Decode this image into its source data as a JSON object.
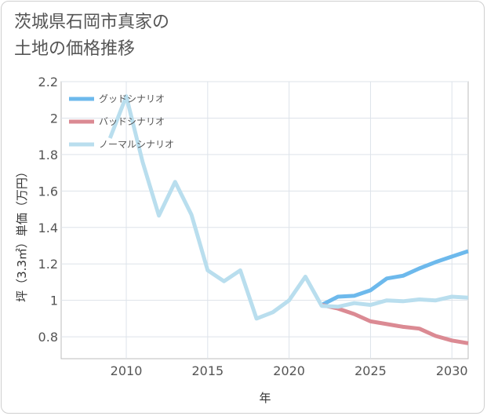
{
  "chart_data": {
    "type": "line",
    "title_lines": [
      "茨城県石岡市真家の",
      "土地の価格推移"
    ],
    "xlabel": "年",
    "ylabel": "坪（3.3㎡）単価（万円）",
    "xlim": [
      2006,
      2031
    ],
    "ylim": [
      0.68,
      2.2
    ],
    "x_ticks": [
      2010,
      2015,
      2020,
      2025,
      2030
    ],
    "y_ticks": [
      0.8,
      1,
      1.2,
      1.4,
      1.6,
      1.8,
      2,
      2.2
    ],
    "y_tick_labels": [
      "0.8",
      "1",
      "1.2",
      "1.4",
      "1.6",
      "1.8",
      "2",
      "2.2"
    ],
    "grid": true,
    "legend_position": "top-left",
    "series": [
      {
        "name": "グッドシナリオ",
        "color": "#6db9ec",
        "x": [
          2022,
          2023,
          2024,
          2025,
          2026,
          2027,
          2028,
          2029,
          2030,
          2031
        ],
        "values": [
          0.975,
          1.02,
          1.025,
          1.055,
          1.12,
          1.135,
          1.175,
          1.21,
          1.24,
          1.27
        ]
      },
      {
        "name": "バッドシナリオ",
        "color": "#db8a93",
        "x": [
          2022,
          2023,
          2024,
          2025,
          2026,
          2027,
          2028,
          2029,
          2030,
          2031
        ],
        "values": [
          0.975,
          0.955,
          0.925,
          0.885,
          0.87,
          0.855,
          0.845,
          0.805,
          0.78,
          0.765
        ]
      },
      {
        "name": "ノーマルシナリオ",
        "color": "#b9deee",
        "x": [
          2009,
          2010,
          2011,
          2012,
          2013,
          2014,
          2015,
          2016,
          2017,
          2018,
          2019,
          2020,
          2021,
          2022,
          2023,
          2024,
          2025,
          2026,
          2027,
          2028,
          2029,
          2030,
          2031
        ],
        "values": [
          1.89,
          2.12,
          1.76,
          1.465,
          1.65,
          1.47,
          1.165,
          1.105,
          1.165,
          0.9,
          0.935,
          1.0,
          1.13,
          0.97,
          0.965,
          0.985,
          0.975,
          1.0,
          0.995,
          1.005,
          1.0,
          1.02,
          1.015
        ]
      }
    ]
  }
}
